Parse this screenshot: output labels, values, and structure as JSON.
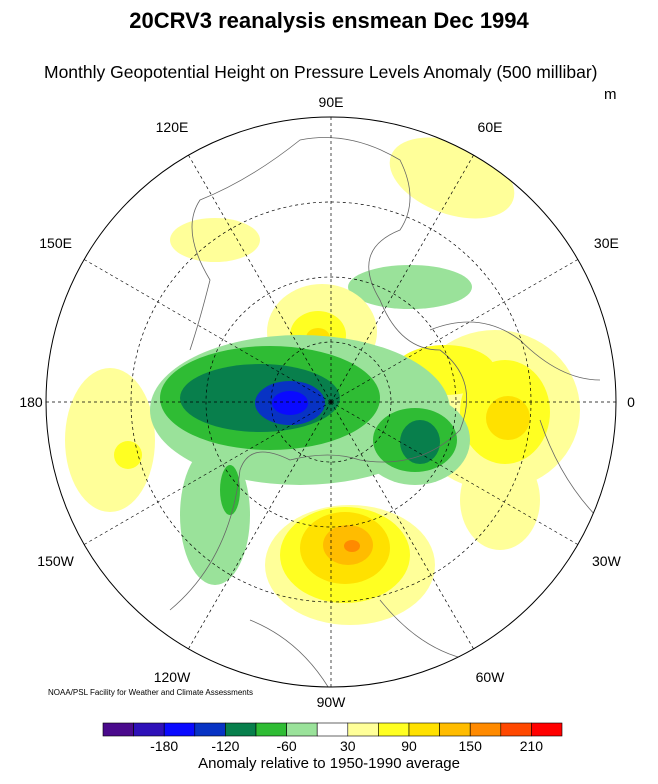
{
  "title": "20CRV3 reanalysis ensmean Dec 1994",
  "subtitle": "Monthly Geopotential Height on Pressure Levels Anomaly (500 millibar)",
  "unit": "m",
  "longitude_labels": [
    "90E",
    "60E",
    "30E",
    "0",
    "30W",
    "60W",
    "90W",
    "120W",
    "150W",
    "180",
    "150E",
    "120E"
  ],
  "credit": "NOAA/PSL Facility for Weather and Climate Assessments",
  "colorbar": {
    "title": "Anomaly relative to 1950-1990 average",
    "tick_labels": [
      "-180",
      "-120",
      "-60",
      "30",
      "90",
      "150",
      "210"
    ],
    "colors": [
      "#4a0a8c",
      "#2e10b8",
      "#0a0aff",
      "#0833c4",
      "#087f4c",
      "#2fbc34",
      "#9ae29a",
      "#ffffff",
      "#ffff99",
      "#ffff22",
      "#ffe100",
      "#ffbc00",
      "#ff8a00",
      "#ff4800",
      "#ff0000"
    ]
  }
}
